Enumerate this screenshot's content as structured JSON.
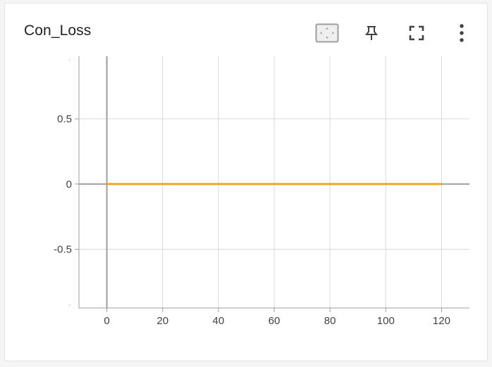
{
  "card": {
    "title": "Con_Loss"
  },
  "toolbar": {
    "icons": [
      "fit-domain-icon",
      "pin-icon",
      "fullscreen-icon",
      "more-vert-icon"
    ]
  },
  "colors": {
    "series": "#f5a623",
    "grid": "#d9d9d9",
    "axis": "#9e9e9e",
    "tick_text": "#424242"
  },
  "chart_data": {
    "type": "line",
    "title": "Con_Loss",
    "xlabel": "",
    "ylabel": "",
    "xlim": [
      -10,
      130
    ],
    "ylim": [
      -0.95,
      0.98
    ],
    "xticks": [
      0,
      20,
      40,
      60,
      80,
      100,
      120
    ],
    "yticks": [
      -0.5,
      0,
      0.5
    ],
    "xtick_labels": [
      "0",
      "20",
      "40",
      "60",
      "80",
      "100",
      "120"
    ],
    "ytick_labels": [
      "-0.5",
      "0",
      "0.5"
    ],
    "grid": true,
    "legend": "none",
    "series": [
      {
        "x": [
          0,
          120
        ],
        "y": [
          0,
          0
        ]
      }
    ]
  }
}
